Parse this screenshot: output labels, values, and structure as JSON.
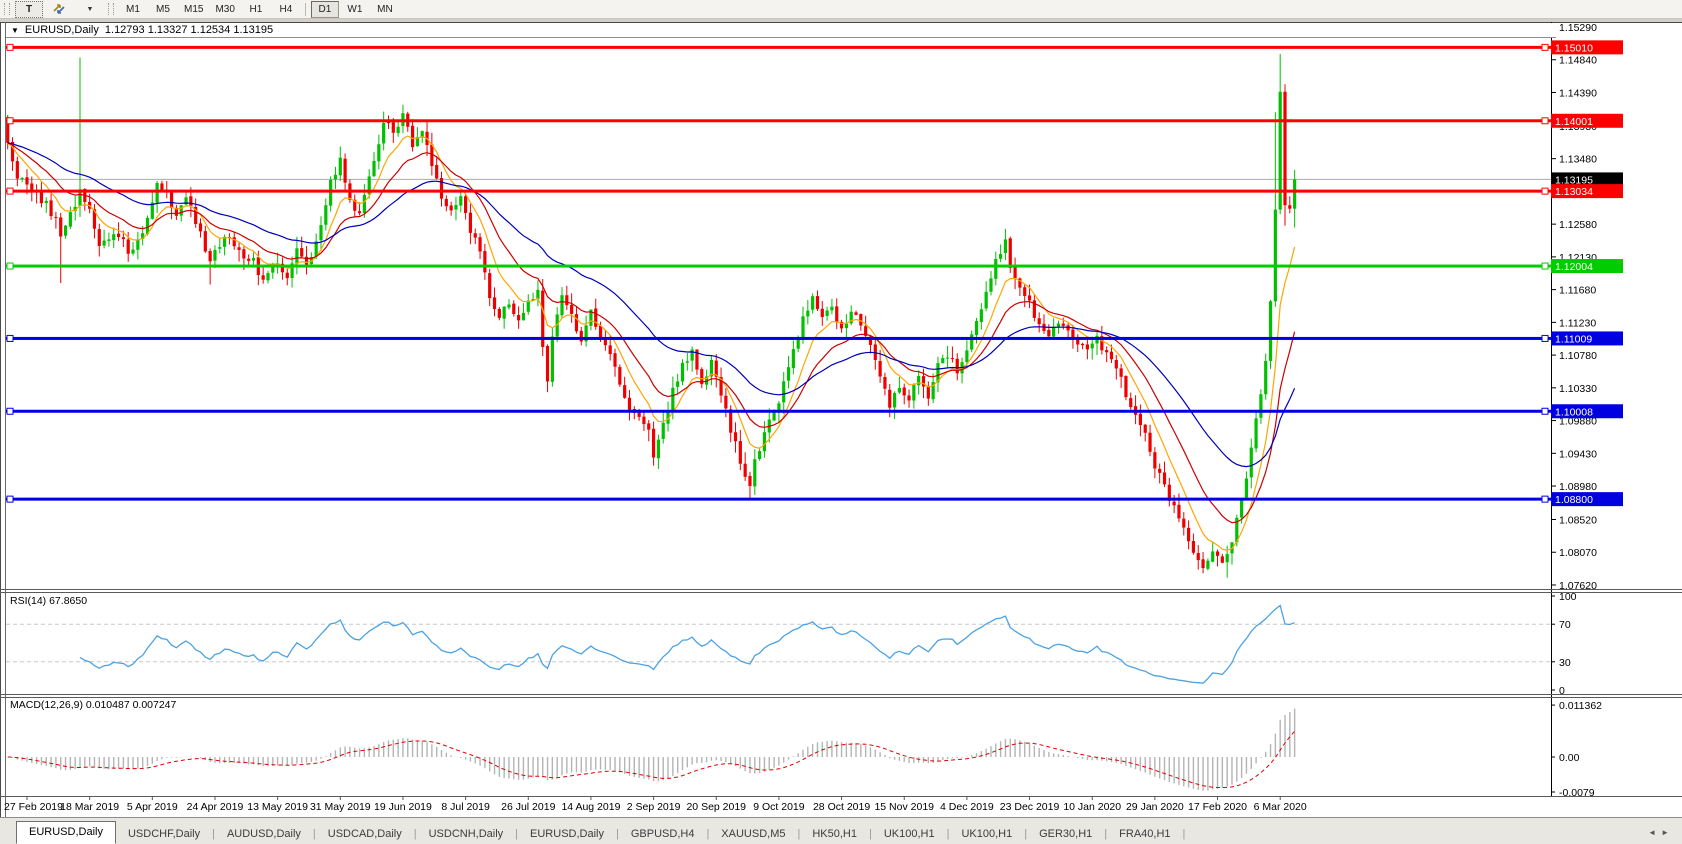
{
  "toolbar": {
    "text_tool": "T",
    "dropdown_icon": "▼",
    "timeframes": [
      "M1",
      "M5",
      "M15",
      "M30",
      "H1",
      "H4",
      "D1",
      "W1",
      "MN"
    ],
    "active_timeframe": "D1"
  },
  "window": {
    "collapse_icon": "▼",
    "symbol": "EURUSD,Daily",
    "ohlc": "1.12793 1.13327 1.12534 1.13195"
  },
  "chart_data": {
    "type": "candlestick",
    "symbol": "EURUSD",
    "timeframe": "Daily",
    "last_bar": {
      "open": 1.12793,
      "high": 1.13327,
      "low": 1.12534,
      "close": 1.13195
    },
    "y_axis": {
      "min": 1.0762,
      "max": 1.1529,
      "labels": [
        "1.15290",
        "1.14840",
        "1.14390",
        "1.13930",
        "1.13480",
        "1.13030",
        "1.12580",
        "1.12130",
        "1.11680",
        "1.11230",
        "1.10780",
        "1.10330",
        "1.09880",
        "1.09430",
        "1.08980",
        "1.08520",
        "1.08070",
        "1.07620"
      ]
    },
    "x_axis": {
      "labels": [
        "27 Feb 2019",
        "18 Mar 2019",
        "5 Apr 2019",
        "24 Apr 2019",
        "13 May 2019",
        "31 May 2019",
        "19 Jun 2019",
        "8 Jul 2019",
        "26 Jul 2019",
        "14 Aug 2019",
        "2 Sep 2019",
        "20 Sep 2019",
        "9 Oct 2019",
        "28 Oct 2019",
        "15 Nov 2019",
        "4 Dec 2019",
        "23 Dec 2019",
        "10 Jan 2020",
        "29 Jan 2020",
        "17 Feb 2020",
        "6 Mar 2020"
      ]
    },
    "current_price": {
      "label": "1.13195",
      "value": 1.13195,
      "badge_color": "#000000",
      "line_color": "#ababab"
    },
    "hlines": [
      {
        "label": "1.15010",
        "price": 1.1501,
        "color": "#FF0000"
      },
      {
        "label": "1.14001",
        "price": 1.14001,
        "color": "#FF0000"
      },
      {
        "label": "1.13034",
        "price": 1.13034,
        "color": "#FF0000"
      },
      {
        "label": "1.12004",
        "price": 1.12004,
        "color": "#00CC00"
      },
      {
        "label": "1.11009",
        "price": 1.11009,
        "color": "#0000E0"
      },
      {
        "label": "1.10008",
        "price": 1.10008,
        "color": "#0000E0"
      },
      {
        "label": "1.08800",
        "price": 1.088,
        "color": "#0000E0"
      }
    ],
    "colors": {
      "bull": "#00C000",
      "bear": "#EE0000",
      "background": "#FFFFFF"
    },
    "moving_averages": [
      {
        "period": 8,
        "color": "#FFA500"
      },
      {
        "period": 17,
        "color": "#CC0000"
      },
      {
        "period": 40,
        "color": "#0000BB"
      }
    ],
    "candles": {
      "count": 268,
      "waypoints": [
        [
          0,
          1.1368
        ],
        [
          2,
          1.1325
        ],
        [
          5,
          1.1308
        ],
        [
          8,
          1.1285
        ],
        [
          10,
          1.1262
        ],
        [
          11,
          1.1248
        ],
        [
          13,
          1.127
        ],
        [
          15,
          1.1302
        ],
        [
          17,
          1.1275
        ],
        [
          19,
          1.1228
        ],
        [
          22,
          1.125
        ],
        [
          25,
          1.1222
        ],
        [
          28,
          1.1242
        ],
        [
          31,
          1.1318
        ],
        [
          33,
          1.1296
        ],
        [
          35,
          1.1272
        ],
        [
          37,
          1.1293
        ],
        [
          40,
          1.1242
        ],
        [
          42,
          1.1206
        ],
        [
          45,
          1.1243
        ],
        [
          48,
          1.1222
        ],
        [
          51,
          1.1206
        ],
        [
          53,
          1.1178
        ],
        [
          56,
          1.121
        ],
        [
          58,
          1.1185
        ],
        [
          60,
          1.1222
        ],
        [
          62,
          1.1195
        ],
        [
          64,
          1.1228
        ],
        [
          67,
          1.1312
        ],
        [
          69,
          1.1344
        ],
        [
          71,
          1.129
        ],
        [
          73,
          1.1268
        ],
        [
          75,
          1.1322
        ],
        [
          78,
          1.1398
        ],
        [
          80,
          1.1383
        ],
        [
          82,
          1.1404
        ],
        [
          84,
          1.137
        ],
        [
          86,
          1.1392
        ],
        [
          88,
          1.1342
        ],
        [
          90,
          1.1287
        ],
        [
          92,
          1.127
        ],
        [
          94,
          1.129
        ],
        [
          96,
          1.1252
        ],
        [
          98,
          1.122
        ],
        [
          100,
          1.1158
        ],
        [
          102,
          1.113
        ],
        [
          104,
          1.115
        ],
        [
          106,
          1.112
        ],
        [
          108,
          1.1147
        ],
        [
          110,
          1.117
        ],
        [
          111,
          1.1088
        ],
        [
          112,
          1.1042
        ],
        [
          113,
          1.1108
        ],
        [
          115,
          1.1158
        ],
        [
          117,
          1.1128
        ],
        [
          119,
          1.1098
        ],
        [
          121,
          1.1138
        ],
        [
          123,
          1.11
        ],
        [
          125,
          1.1078
        ],
        [
          127,
          1.1042
        ],
        [
          129,
          1.1
        ],
        [
          131,
          1.0988
        ],
        [
          133,
          1.0975
        ],
        [
          134,
          1.0942
        ],
        [
          136,
          1.099
        ],
        [
          138,
          1.1028
        ],
        [
          140,
          1.1068
        ],
        [
          142,
          1.108
        ],
        [
          144,
          1.1042
        ],
        [
          146,
          1.1068
        ],
        [
          148,
          1.1022
        ],
        [
          150,
          1.0978
        ],
        [
          152,
          1.0928
        ],
        [
          154,
          1.09
        ],
        [
          155,
          1.0934
        ],
        [
          157,
          1.0972
        ],
        [
          159,
          1.0998
        ],
        [
          161,
          1.1035
        ],
        [
          163,
          1.108
        ],
        [
          165,
          1.1128
        ],
        [
          167,
          1.1155
        ],
        [
          169,
          1.113
        ],
        [
          171,
          1.1145
        ],
        [
          173,
          1.1112
        ],
        [
          175,
          1.1138
        ],
        [
          177,
          1.112
        ],
        [
          179,
          1.1085
        ],
        [
          181,
          1.105
        ],
        [
          183,
          1.101
        ],
        [
          185,
          1.1035
        ],
        [
          187,
          1.1015
        ],
        [
          189,
          1.105
        ],
        [
          191,
          1.1025
        ],
        [
          193,
          1.106
        ],
        [
          195,
          1.1078
        ],
        [
          197,
          1.1055
        ],
        [
          199,
          1.1085
        ],
        [
          201,
          1.1125
        ],
        [
          203,
          1.116
        ],
        [
          205,
          1.1205
        ],
        [
          207,
          1.1232
        ],
        [
          208,
          1.12
        ],
        [
          210,
          1.1175
        ],
        [
          212,
          1.115
        ],
        [
          214,
          1.112
        ],
        [
          216,
          1.1098
        ],
        [
          218,
          1.1125
        ],
        [
          220,
          1.111
        ],
        [
          222,
          1.1095
        ],
        [
          224,
          1.1085
        ],
        [
          226,
          1.11
        ],
        [
          228,
          1.1075
        ],
        [
          230,
          1.1058
        ],
        [
          232,
          1.1025
        ],
        [
          234,
          1.099
        ],
        [
          236,
          1.0965
        ],
        [
          238,
          1.0928
        ],
        [
          240,
          1.0898
        ],
        [
          242,
          1.0865
        ],
        [
          244,
          1.0835
        ],
        [
          246,
          1.0805
        ],
        [
          248,
          1.0788
        ],
        [
          250,
          1.0808
        ],
        [
          252,
          1.079
        ],
        [
          253,
          1.08
        ],
        [
          255,
          1.0848
        ],
        [
          257,
          1.0915
        ],
        [
          259,
          1.0988
        ],
        [
          261,
          1.107
        ],
        [
          262,
          1.1152
        ],
        [
          263,
          1.1278
        ],
        [
          264,
          1.144
        ],
        [
          265,
          1.1284
        ],
        [
          266,
          1.12793
        ],
        [
          267,
          1.13195
        ]
      ],
      "spikes": {
        "11": {
          "l": 1.1177
        },
        "15": {
          "h": 1.1487
        },
        "42": {
          "l": 1.1175
        },
        "112": {
          "l": 1.1027
        },
        "134": {
          "l": 1.0926
        },
        "154": {
          "l": 1.0879
        },
        "248": {
          "l": 1.0778
        },
        "253": {
          "l": 1.0772
        },
        "263": {
          "h": 1.1412
        },
        "264": {
          "h": 1.1492
        },
        "265": {
          "l": 1.1256
        },
        "267": {
          "h": 1.13327,
          "l": 1.12534
        }
      }
    },
    "rsi": {
      "label": "RSI(14) 67.8650",
      "period": 14,
      "value": 67.865,
      "scale": [
        100,
        70,
        30,
        0
      ],
      "levels": [
        70,
        30
      ],
      "color": "#4BA3E3"
    },
    "macd": {
      "label": "MACD(12,26,9) 0.010487 0.007247",
      "fast": 12,
      "slow": 26,
      "signal_period": 9,
      "main": 0.010487,
      "signal": 0.007247,
      "scale": [
        {
          "text": "0.011362",
          "value": 0.011362
        },
        {
          "text": "0.00",
          "value": 0
        },
        {
          "text": "-0.0079",
          "value": -0.0079
        }
      ],
      "histogram_color": "#B4B4B4",
      "signal_color": "#E00000"
    }
  },
  "tabs": {
    "items": [
      "EURUSD,Daily",
      "USDCHF,Daily",
      "AUDUSD,Daily",
      "USDCAD,Daily",
      "USDCNH,Daily",
      "EURUSD,Daily",
      "GBPUSD,H4",
      "XAUUSD,M5",
      "HK50,H1",
      "UK100,H1",
      "UK100,H1",
      "GER30,H1",
      "FRA40,H1"
    ],
    "active_index": 0,
    "nav_left": "◄",
    "nav_right": "►"
  }
}
